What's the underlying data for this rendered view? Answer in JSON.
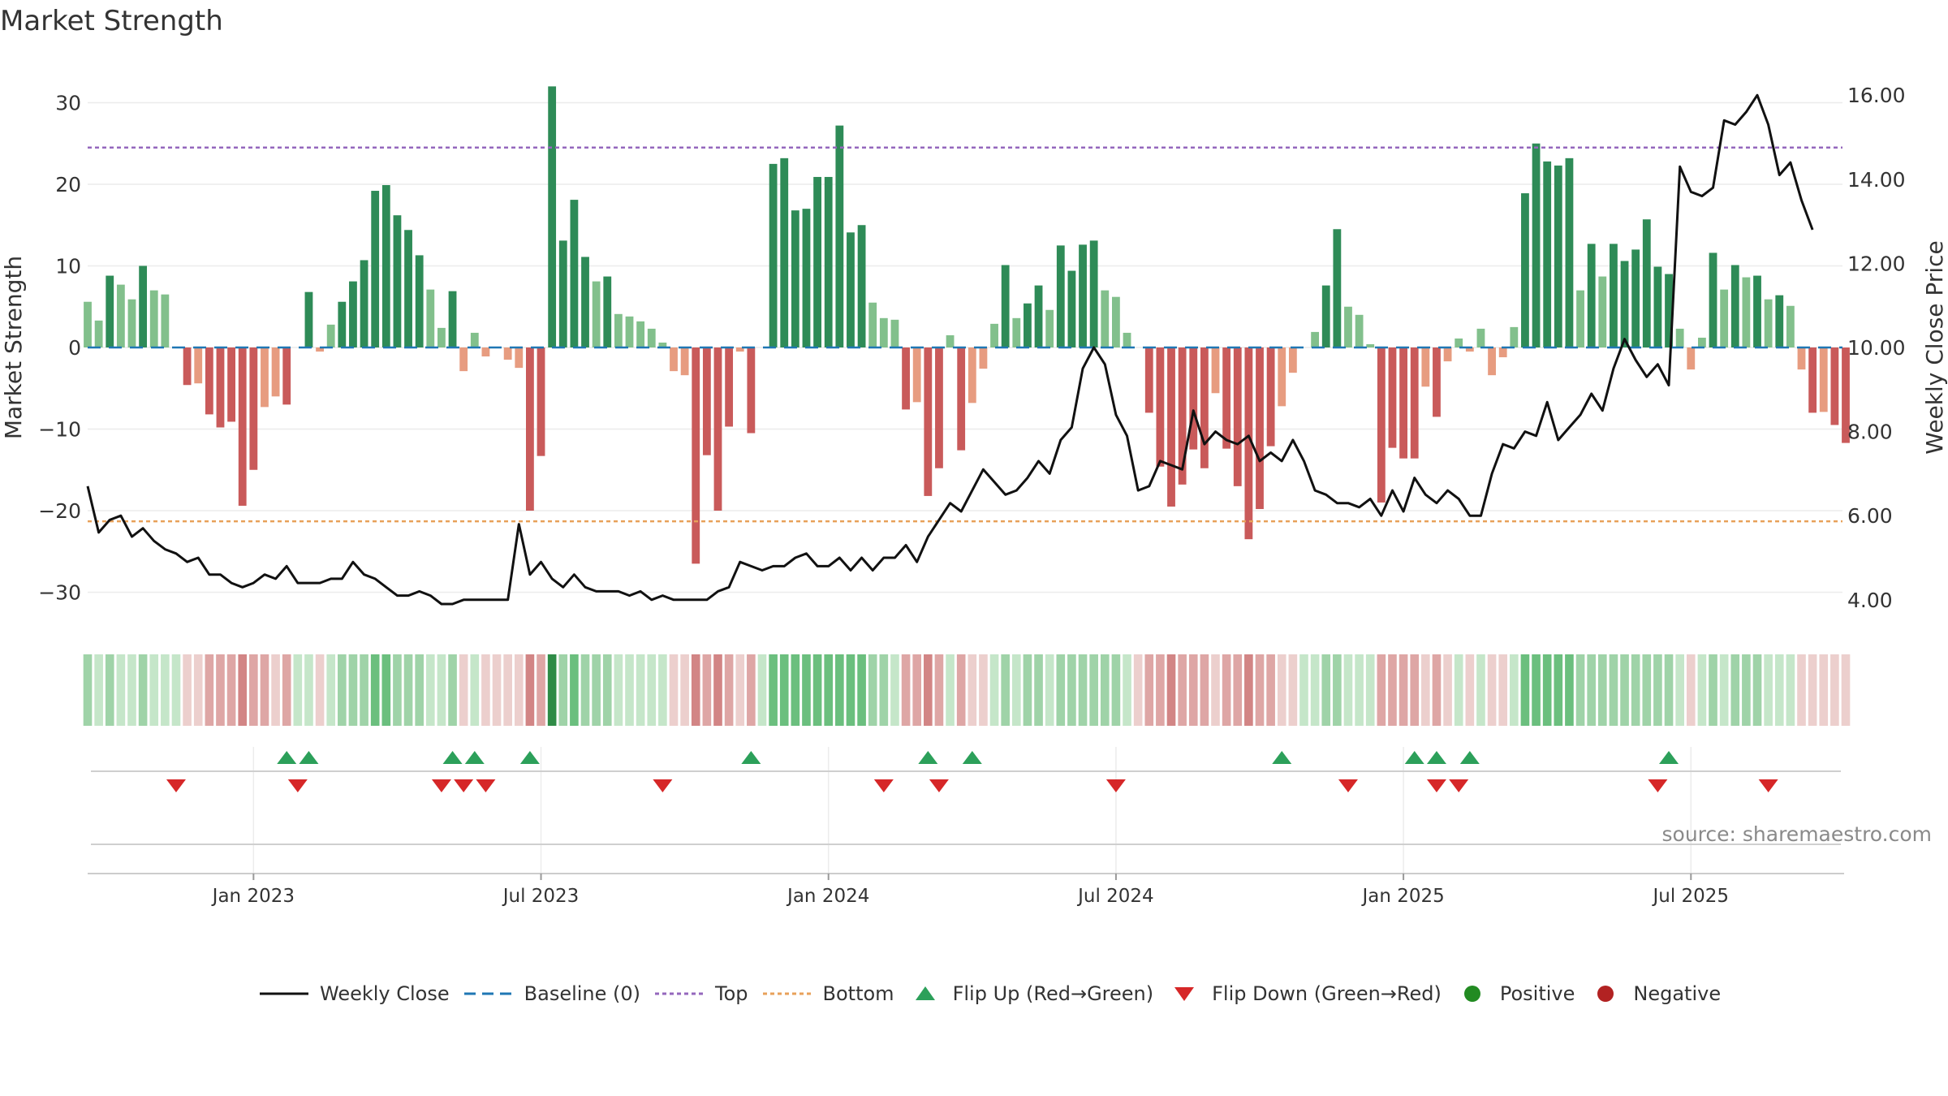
{
  "chart_data": {
    "type": "bar",
    "title": "Market Strength",
    "ylabel_left": "Market Strength",
    "ylabel_right": "Weekly Close Price",
    "ylim_left": [
      -35,
      35
    ],
    "ylim_right": [
      3.0,
      17.0
    ],
    "left_ticks": [
      -30,
      -20,
      -10,
      0,
      10,
      20,
      30
    ],
    "left_tick_labels": [
      "−30",
      "−20",
      "−10",
      "0",
      "10",
      "20",
      "30"
    ],
    "right_ticks": [
      4,
      6,
      8,
      10,
      12,
      14,
      16
    ],
    "right_tick_labels": [
      "4.00",
      "6.00",
      "8.00",
      "10.00",
      "12.00",
      "14.00",
      "16.00"
    ],
    "x_tick_labels": [
      "Jan 2023",
      "Jul 2023",
      "Jan 2024",
      "Jul 2024",
      "Jan 2025",
      "Jul 2025"
    ],
    "x_tick_weeks": [
      15,
      41,
      67,
      93,
      119,
      145
    ],
    "top_level": 24.5,
    "bottom_level": -21.3,
    "baseline": 0,
    "strength": [
      5.6,
      3.3,
      8.8,
      7.7,
      5.9,
      10,
      7,
      6.5,
      0,
      -4.6,
      -4.4,
      -8.2,
      -9.8,
      -9.1,
      -19.4,
      -15,
      -7.3,
      -6,
      -7,
      0,
      6.8,
      -0.5,
      2.8,
      5.6,
      8.1,
      10.7,
      19.2,
      19.9,
      16.2,
      14.4,
      11.3,
      7.1,
      2.4,
      6.9,
      -2.9,
      1.8,
      -1.1,
      -0.2,
      -1.5,
      -2.5,
      -20,
      -13.3,
      32,
      13.1,
      18.1,
      11.1,
      8.1,
      8.7,
      4.1,
      3.8,
      3.2,
      2.3,
      0.6,
      -2.9,
      -3.4,
      -26.5,
      -13.2,
      -20,
      -9.7,
      -0.5,
      -10.5,
      0,
      22.5,
      23.2,
      16.8,
      17,
      20.9,
      20.9,
      27.2,
      14.1,
      15,
      5.5,
      3.6,
      3.4,
      -7.6,
      -6.7,
      -18.2,
      -14.8,
      1.5,
      -12.6,
      -6.8,
      -2.6,
      2.9,
      10.1,
      3.6,
      5.4,
      7.6,
      4.6,
      12.5,
      9.4,
      12.6,
      13.1,
      7,
      6.2,
      1.8,
      -0.1,
      -8,
      -14.6,
      -19.5,
      -16.8,
      -12.5,
      -14.8,
      -5.6,
      -12.4,
      -17,
      -23.5,
      -19.8,
      -12.1,
      -7.2,
      -3.1,
      0,
      1.9,
      7.6,
      14.5,
      5,
      4,
      0.4,
      -19,
      -12.3,
      -13.6,
      -13.6,
      -4.8,
      -8.5,
      -1.7,
      1.1,
      -0.5,
      2.3,
      -3.4,
      -1.2,
      2.5,
      18.9,
      25,
      22.8,
      22.3,
      23.2,
      7,
      12.7,
      8.7,
      12.7,
      10.6,
      12,
      15.7,
      9.9,
      9,
      2.3,
      -2.7,
      1.2,
      11.6,
      7.1,
      10.1,
      8.6,
      8.8,
      5.9,
      6.4,
      5.1,
      -2.7,
      -8,
      -7.9,
      -9.5,
      -11.7
    ],
    "close": [
      6.7,
      5.6,
      5.9,
      6,
      5.5,
      5.7,
      5.4,
      5.2,
      5.1,
      4.9,
      5.0,
      4.6,
      4.6,
      4.4,
      4.3,
      4.4,
      4.6,
      4.5,
      4.8,
      4.4,
      4.4,
      4.4,
      4.5,
      4.5,
      4.9,
      4.6,
      4.5,
      4.3,
      4.1,
      4.1,
      4.2,
      4.1,
      3.9,
      3.9,
      4.0,
      4.0,
      4.0,
      4.0,
      4.0,
      5.8,
      4.6,
      4.9,
      4.5,
      4.3,
      4.6,
      4.3,
      4.2,
      4.2,
      4.2,
      4.1,
      4.2,
      4.0,
      4.1,
      4.0,
      4.0,
      4.0,
      4.0,
      4.2,
      4.3,
      4.9,
      4.8,
      4.7,
      4.8,
      4.8,
      5.0,
      5.1,
      4.8,
      4.8,
      5.0,
      4.7,
      5.0,
      4.7,
      5.0,
      5.0,
      5.3,
      4.9,
      5.5,
      5.9,
      6.3,
      6.1,
      6.6,
      7.1,
      6.8,
      6.5,
      6.6,
      6.9,
      7.3,
      7.0,
      7.8,
      8.1,
      9.5,
      10,
      9.6,
      8.4,
      7.9,
      6.6,
      6.7,
      7.3,
      7.2,
      7.1,
      8.5,
      7.7,
      8.0,
      7.8,
      7.7,
      7.9,
      7.3,
      7.5,
      7.3,
      7.8,
      7.3,
      6.6,
      6.5,
      6.3,
      6.3,
      6.2,
      6.4,
      6.0,
      6.6,
      6.1,
      6.9,
      6.5,
      6.3,
      6.6,
      6.4,
      6.0,
      6.0,
      7.0,
      7.7,
      7.6,
      8.0,
      7.9,
      8.7,
      7.8,
      8.1,
      8.4,
      8.9,
      8.5,
      9.5,
      10.2,
      9.7,
      9.3,
      9.6,
      9.1,
      14.3,
      13.7,
      13.6,
      13.8,
      15.4,
      15.3,
      15.6,
      16.0,
      15.3,
      14.1,
      14.4,
      13.5,
      12.8
    ],
    "band_levels": [
      2,
      1,
      2,
      1,
      1,
      2,
      1,
      1,
      1,
      -1,
      -1,
      -2,
      -2,
      -2,
      -3,
      -2,
      -2,
      -1,
      -2,
      1,
      1,
      -1,
      1,
      2,
      2,
      2,
      3,
      3,
      2,
      2,
      2,
      1,
      1,
      2,
      -1,
      1,
      -1,
      -1,
      -1,
      -1,
      -3,
      -2,
      4,
      2,
      3,
      2,
      2,
      2,
      1,
      1,
      1,
      1,
      1,
      -1,
      -1,
      -3,
      -2,
      -3,
      -2,
      -1,
      -2,
      1,
      3,
      3,
      3,
      3,
      3,
      3,
      3,
      3,
      3,
      2,
      2,
      1,
      -2,
      -2,
      -3,
      -2,
      1,
      -2,
      -1,
      -1,
      1,
      2,
      1,
      2,
      2,
      1,
      2,
      2,
      2,
      2,
      2,
      2,
      1,
      -1,
      -2,
      -2,
      -3,
      -2,
      -2,
      -2,
      -1,
      -2,
      -2,
      -3,
      -2,
      -2,
      -1,
      -1,
      1,
      1,
      2,
      2,
      1,
      1,
      1,
      -2,
      -2,
      -2,
      -2,
      -1,
      -2,
      -1,
      1,
      -1,
      1,
      -1,
      -1,
      1,
      3,
      3,
      3,
      3,
      3,
      2,
      2,
      2,
      2,
      2,
      2,
      2,
      2,
      2,
      1,
      -1,
      1,
      2,
      1,
      2,
      2,
      2,
      1,
      1,
      1,
      -1,
      -1,
      -1,
      -1,
      -1
    ],
    "flip_up_weeks": [
      18,
      20,
      33,
      35,
      40,
      60,
      76,
      80,
      108,
      120,
      122,
      125,
      143
    ],
    "flip_down_weeks": [
      8,
      19,
      32,
      34,
      36,
      52,
      72,
      77,
      93,
      114,
      122,
      124,
      142,
      152
    ],
    "colors": {
      "strong_green": "#2e8b57",
      "weak_green": "#82c08c",
      "strong_red": "#c95a5a",
      "weak_red": "#e79c80",
      "close_line": "#111111",
      "baseline": "#1f77b4",
      "top": "#9467bd",
      "bottom": "#e8a15a",
      "flip_up": "#2ca05a",
      "flip_down": "#d62728",
      "positive": "#228b22",
      "negative": "#b22222"
    }
  },
  "source_text": "source: sharemaestro.com",
  "legend": {
    "weekly_close": "Weekly Close",
    "baseline": "Baseline (0)",
    "top": "Top",
    "bottom": "Bottom",
    "flip_up": "Flip Up (Red→Green)",
    "flip_down": "Flip Down (Green→Red)",
    "positive": "Positive",
    "negative": "Negative"
  }
}
